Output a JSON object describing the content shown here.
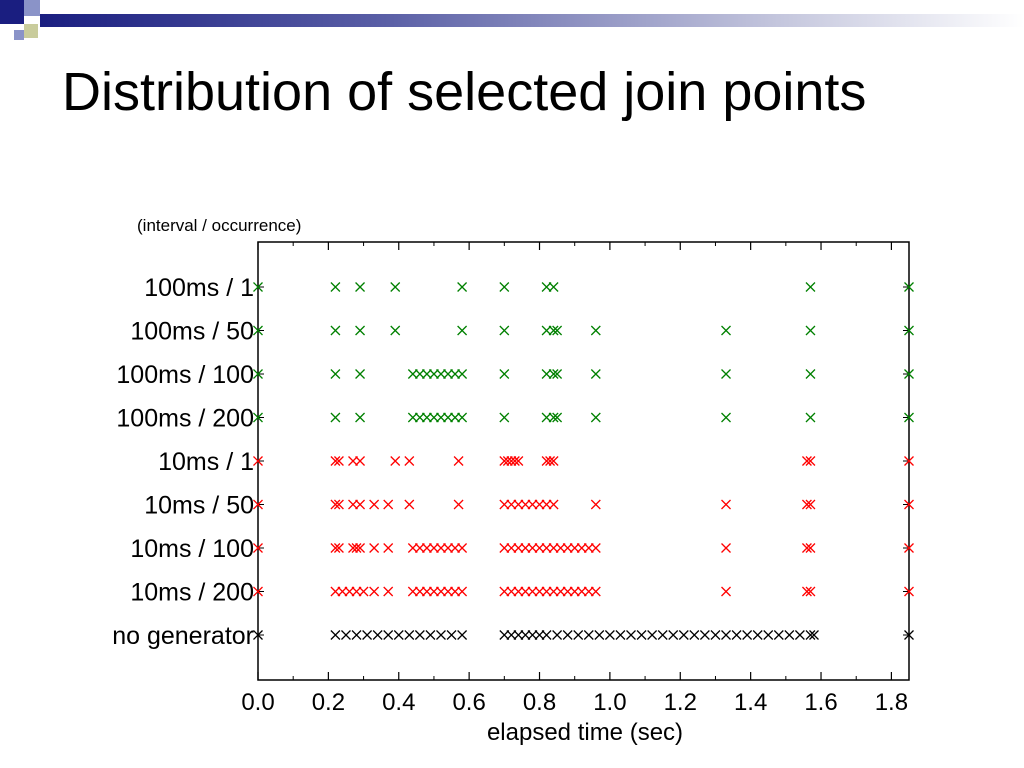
{
  "slide": {
    "title": "Distribution of selected join points",
    "bullet_colors": [
      "#1a1e80",
      "#8a93c8",
      "#c9cc9c"
    ]
  },
  "chart_data": {
    "type": "scatter",
    "title": "",
    "subtitle": "(interval / occurrence)",
    "xlabel": "elapsed time (sec)",
    "ylabel": "",
    "xlim": [
      0.0,
      1.85
    ],
    "xticks": [
      "0.0",
      "0.2",
      "0.4",
      "0.6",
      "0.8",
      "1.0",
      "1.2",
      "1.4",
      "1.6",
      "1.8"
    ],
    "marker": "x",
    "grid": false,
    "series": [
      {
        "name": "100ms / 1",
        "color": "#008000",
        "x": [
          0.0,
          0.22,
          0.29,
          0.39,
          0.58,
          0.7,
          0.82,
          0.84,
          1.57,
          1.85
        ]
      },
      {
        "name": "100ms / 50",
        "color": "#008000",
        "x": [
          0.0,
          0.22,
          0.29,
          0.39,
          0.58,
          0.7,
          0.82,
          0.84,
          0.85,
          0.96,
          1.33,
          1.57,
          1.85
        ]
      },
      {
        "name": "100ms / 100",
        "color": "#008000",
        "x": [
          0.0,
          0.22,
          0.29,
          0.44,
          0.46,
          0.48,
          0.5,
          0.52,
          0.54,
          0.56,
          0.58,
          0.7,
          0.82,
          0.84,
          0.85,
          0.96,
          1.33,
          1.57,
          1.85
        ]
      },
      {
        "name": "100ms / 200",
        "color": "#008000",
        "x": [
          0.0,
          0.22,
          0.29,
          0.44,
          0.46,
          0.48,
          0.5,
          0.52,
          0.54,
          0.56,
          0.58,
          0.7,
          0.82,
          0.84,
          0.85,
          0.96,
          1.33,
          1.57,
          1.85
        ]
      },
      {
        "name": "10ms / 1",
        "color": "#ff0000",
        "x": [
          0.0,
          0.22,
          0.23,
          0.27,
          0.29,
          0.39,
          0.43,
          0.57,
          0.7,
          0.71,
          0.72,
          0.73,
          0.74,
          0.82,
          0.83,
          0.84,
          1.56,
          1.57,
          1.85
        ]
      },
      {
        "name": "10ms / 50",
        "color": "#ff0000",
        "x": [
          0.0,
          0.22,
          0.23,
          0.27,
          0.29,
          0.33,
          0.37,
          0.43,
          0.57,
          0.7,
          0.72,
          0.74,
          0.76,
          0.78,
          0.8,
          0.82,
          0.84,
          0.96,
          1.33,
          1.56,
          1.57,
          1.85
        ]
      },
      {
        "name": "10ms / 100",
        "color": "#ff0000",
        "x": [
          0.0,
          0.22,
          0.23,
          0.27,
          0.28,
          0.29,
          0.33,
          0.37,
          0.44,
          0.46,
          0.48,
          0.5,
          0.52,
          0.54,
          0.56,
          0.58,
          0.7,
          0.72,
          0.74,
          0.76,
          0.78,
          0.8,
          0.82,
          0.84,
          0.86,
          0.88,
          0.9,
          0.92,
          0.94,
          0.96,
          1.33,
          1.56,
          1.57,
          1.85
        ]
      },
      {
        "name": "10ms / 200",
        "color": "#ff0000",
        "x": [
          0.0,
          0.22,
          0.24,
          0.26,
          0.28,
          0.3,
          0.33,
          0.37,
          0.44,
          0.46,
          0.48,
          0.5,
          0.52,
          0.54,
          0.56,
          0.58,
          0.7,
          0.72,
          0.74,
          0.76,
          0.78,
          0.8,
          0.82,
          0.84,
          0.86,
          0.88,
          0.9,
          0.92,
          0.94,
          0.96,
          1.33,
          1.56,
          1.57,
          1.85
        ]
      },
      {
        "name": "no generator",
        "color": "#000000",
        "x": [
          0.0,
          0.22,
          0.25,
          0.28,
          0.31,
          0.34,
          0.37,
          0.4,
          0.43,
          0.46,
          0.49,
          0.52,
          0.55,
          0.58,
          0.7,
          0.72,
          0.74,
          0.76,
          0.78,
          0.8,
          0.82,
          0.85,
          0.88,
          0.91,
          0.94,
          0.97,
          1.0,
          1.03,
          1.06,
          1.09,
          1.12,
          1.15,
          1.18,
          1.21,
          1.24,
          1.27,
          1.3,
          1.33,
          1.36,
          1.39,
          1.42,
          1.45,
          1.48,
          1.51,
          1.54,
          1.57,
          1.58,
          1.85
        ]
      }
    ]
  }
}
